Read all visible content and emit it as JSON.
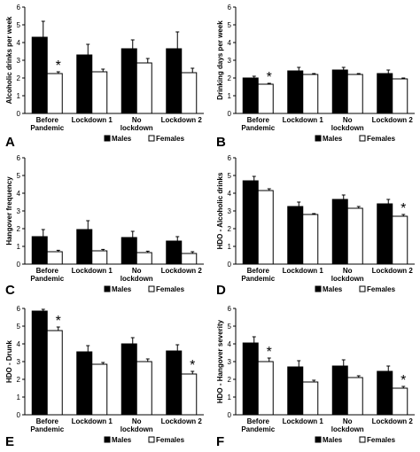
{
  "chart_data": [
    {
      "panel": "A",
      "type": "bar",
      "ylabel": "Alcoholic drinks per week",
      "ylim": [
        0,
        6
      ],
      "yticks": [
        "0",
        "1",
        "2",
        "3",
        "4",
        "5",
        "6"
      ],
      "categories": [
        [
          "Before",
          "Pandemic"
        ],
        [
          "Lockdown 1"
        ],
        [
          "No",
          "lockdown"
        ],
        [
          "Lockdown 2"
        ]
      ],
      "series": [
        {
          "name": "Males",
          "color": "#000000",
          "values": [
            4.3,
            3.3,
            3.65,
            3.65
          ],
          "errors": [
            0.9,
            0.6,
            0.5,
            0.95
          ]
        },
        {
          "name": "Females",
          "color": "#ffffff",
          "values": [
            2.25,
            2.35,
            2.85,
            2.3
          ],
          "errors": [
            0.1,
            0.15,
            0.25,
            0.25
          ]
        }
      ],
      "significance": [
        {
          "category": 0,
          "series": 1,
          "mark": "*"
        }
      ],
      "legend": {
        "position": "bottom"
      }
    },
    {
      "panel": "B",
      "type": "bar",
      "ylabel": "Drinking days per week",
      "ylim": [
        0,
        6
      ],
      "yticks": [
        "0",
        "1",
        "2",
        "3",
        "4",
        "5",
        "6"
      ],
      "categories": [
        [
          "Before",
          "Pandemic"
        ],
        [
          "Lockdown 1"
        ],
        [
          "No",
          "lockdown"
        ],
        [
          "Lockdown 2"
        ]
      ],
      "series": [
        {
          "name": "Males",
          "color": "#000000",
          "values": [
            2.0,
            2.4,
            2.45,
            2.25
          ],
          "errors": [
            0.1,
            0.2,
            0.15,
            0.2
          ]
        },
        {
          "name": "Females",
          "color": "#ffffff",
          "values": [
            1.65,
            2.2,
            2.2,
            1.95
          ],
          "errors": [
            0.05,
            0.05,
            0.05,
            0.05
          ]
        }
      ],
      "significance": [
        {
          "category": 0,
          "series": 1,
          "mark": "*"
        }
      ],
      "legend": {
        "position": "bottom"
      }
    },
    {
      "panel": "C",
      "type": "bar",
      "ylabel": "Hangover frequency",
      "ylim": [
        0,
        6
      ],
      "yticks": [
        "0",
        "1",
        "2",
        "3",
        "4",
        "5",
        "6"
      ],
      "categories": [
        [
          "Before",
          "Pandemic"
        ],
        [
          "Lockdown 1"
        ],
        [
          "No",
          "lockdown"
        ],
        [
          "Lockdown 2"
        ]
      ],
      "series": [
        {
          "name": "Males",
          "color": "#000000",
          "values": [
            1.55,
            1.95,
            1.5,
            1.3
          ],
          "errors": [
            0.4,
            0.5,
            0.35,
            0.25
          ]
        },
        {
          "name": "Females",
          "color": "#ffffff",
          "values": [
            0.7,
            0.75,
            0.65,
            0.6
          ],
          "errors": [
            0.08,
            0.08,
            0.08,
            0.1
          ]
        }
      ],
      "significance": [],
      "legend": {
        "position": "bottom"
      }
    },
    {
      "panel": "D",
      "type": "bar",
      "ylabel": "HDO - Alcoholic drinks",
      "ylim": [
        0,
        6
      ],
      "yticks": [
        "0",
        "1",
        "2",
        "3",
        "4",
        "5",
        "6"
      ],
      "categories": [
        [
          "Before",
          "Pandemic"
        ],
        [
          "Lockdown 1"
        ],
        [
          "No",
          "lockdown"
        ],
        [
          "Lockdown 2"
        ]
      ],
      "series": [
        {
          "name": "Males",
          "color": "#000000",
          "values": [
            4.7,
            3.25,
            3.65,
            3.4
          ],
          "errors": [
            0.25,
            0.25,
            0.25,
            0.25
          ]
        },
        {
          "name": "Females",
          "color": "#ffffff",
          "values": [
            4.15,
            2.8,
            3.15,
            2.7
          ],
          "errors": [
            0.1,
            0.05,
            0.1,
            0.1
          ]
        }
      ],
      "significance": [
        {
          "category": 3,
          "series": 1,
          "mark": "*"
        }
      ],
      "legend": {
        "position": "bottom"
      }
    },
    {
      "panel": "E",
      "type": "bar",
      "ylabel": "HDO - Drunk",
      "ylim": [
        0,
        6
      ],
      "yticks": [
        "0",
        "1",
        "2",
        "3",
        "4",
        "5",
        "6"
      ],
      "categories": [
        [
          "Before",
          "Pandemic"
        ],
        [
          "Lockdown 1"
        ],
        [
          "No",
          "lockdown"
        ],
        [
          "Lockdown 2"
        ]
      ],
      "series": [
        {
          "name": "Males",
          "color": "#000000",
          "values": [
            5.85,
            3.55,
            4.0,
            3.6
          ],
          "errors": [
            0.1,
            0.35,
            0.35,
            0.35
          ]
        },
        {
          "name": "Females",
          "color": "#ffffff",
          "values": [
            4.75,
            2.85,
            3.0,
            2.3
          ],
          "errors": [
            0.2,
            0.1,
            0.15,
            0.15
          ]
        }
      ],
      "significance": [
        {
          "category": 0,
          "series": 1,
          "mark": "*"
        },
        {
          "category": 3,
          "series": 1,
          "mark": "*"
        }
      ],
      "legend": {
        "position": "bottom"
      }
    },
    {
      "panel": "F",
      "type": "bar",
      "ylabel": "HDO - Hangover severity",
      "ylim": [
        0,
        6
      ],
      "yticks": [
        "0",
        "1",
        "2",
        "3",
        "4",
        "5",
        "6"
      ],
      "categories": [
        [
          "Before",
          "Pandemic"
        ],
        [
          "Lockdown 1"
        ],
        [
          "No",
          "lockdown"
        ],
        [
          "Lockdown 2"
        ]
      ],
      "series": [
        {
          "name": "Males",
          "color": "#000000",
          "values": [
            4.05,
            2.7,
            2.75,
            2.45
          ],
          "errors": [
            0.35,
            0.35,
            0.35,
            0.3
          ]
        },
        {
          "name": "Females",
          "color": "#ffffff",
          "values": [
            3.0,
            1.85,
            2.1,
            1.5
          ],
          "errors": [
            0.2,
            0.1,
            0.1,
            0.1
          ]
        }
      ],
      "significance": [
        {
          "category": 0,
          "series": 1,
          "mark": "*"
        },
        {
          "category": 3,
          "series": 1,
          "mark": "*"
        }
      ],
      "legend": {
        "position": "bottom"
      }
    }
  ]
}
